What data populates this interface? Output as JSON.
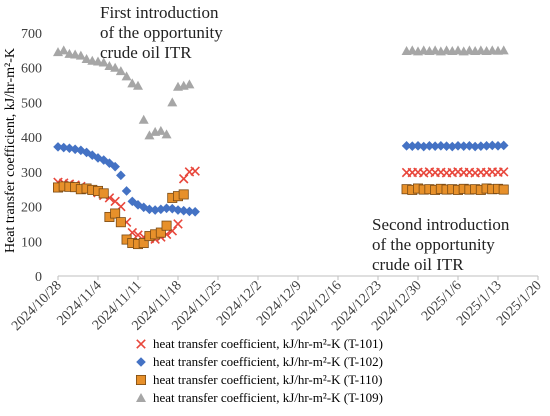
{
  "chart_data": {
    "type": "scatter",
    "ylabel": "Heat transfer coefficient, kJ/hr-m²-K",
    "ylim": [
      0,
      700
    ],
    "yticks": [
      "0",
      "100",
      "200",
      "300",
      "400",
      "500",
      "600",
      "700"
    ],
    "xticks": [
      "2024/10/28",
      "2024/11/4",
      "2024/11/11",
      "2024/11/18",
      "2024/11/25",
      "2024/12/2",
      "2024/12/9",
      "2024/12/16",
      "2024/12/23",
      "2024/12/30",
      "2025/1/6",
      "2025/1/13",
      "2025/1/20"
    ],
    "x_dates": [
      "2024-10-28",
      "2024-11-04",
      "2024-11-11",
      "2024-11-18",
      "2024-11-25",
      "2024-12-02",
      "2024-12-09",
      "2024-12-16",
      "2024-12-23",
      "2024-12-30",
      "2025-01-06",
      "2025-01-13",
      "2025-01-20"
    ],
    "grid": false,
    "legend_position": "bottom",
    "annotations": [
      {
        "lines": [
          "First introduction",
          "of the opportunity",
          "crude oil ITR"
        ]
      },
      {
        "lines": [
          "Second introduction",
          "of the opportunity",
          "crude oil ITR"
        ]
      }
    ],
    "series": [
      {
        "name": "heat transfer coefficient, kJ/hr-m²-K (T-101)",
        "marker": "x",
        "color": "#e8473c",
        "points": [
          [
            "2024-10-28",
            270
          ],
          [
            "2024-10-29",
            268
          ],
          [
            "2024-10-30",
            265
          ],
          [
            "2024-10-31",
            262
          ],
          [
            "2024-11-01",
            258
          ],
          [
            "2024-11-02",
            252
          ],
          [
            "2024-11-03",
            248
          ],
          [
            "2024-11-04",
            240
          ],
          [
            "2024-11-05",
            232
          ],
          [
            "2024-11-06",
            225
          ],
          [
            "2024-11-07",
            215
          ],
          [
            "2024-11-08",
            200
          ],
          [
            "2024-11-09",
            155
          ],
          [
            "2024-11-10",
            125
          ],
          [
            "2024-11-11",
            118
          ],
          [
            "2024-11-12",
            112
          ],
          [
            "2024-11-13",
            108
          ],
          [
            "2024-11-14",
            106
          ],
          [
            "2024-11-15",
            112
          ],
          [
            "2024-11-16",
            120
          ],
          [
            "2024-11-17",
            130
          ],
          [
            "2024-11-18",
            150
          ],
          [
            "2024-11-19",
            280
          ],
          [
            "2024-11-20",
            300
          ],
          [
            "2024-11-21",
            302
          ],
          [
            "2024-12-28",
            298
          ],
          [
            "2024-12-29",
            298
          ],
          [
            "2024-12-30",
            299
          ],
          [
            "2024-12-31",
            297
          ],
          [
            "2025-01-01",
            300
          ],
          [
            "2025-01-02",
            298
          ],
          [
            "2025-01-03",
            299
          ],
          [
            "2025-01-04",
            297
          ],
          [
            "2025-01-05",
            298
          ],
          [
            "2025-01-06",
            300
          ],
          [
            "2025-01-07",
            298
          ],
          [
            "2025-01-08",
            299
          ],
          [
            "2025-01-09",
            297
          ],
          [
            "2025-01-10",
            299
          ],
          [
            "2025-01-11",
            298
          ],
          [
            "2025-01-12",
            300
          ],
          [
            "2025-01-13",
            299
          ],
          [
            "2025-01-14",
            300
          ]
        ]
      },
      {
        "name": "heat transfer coefficient, kJ/hr-m²-K (T-102)",
        "marker": "diamond",
        "color": "#4472c4",
        "points": [
          [
            "2024-10-28",
            372
          ],
          [
            "2024-10-29",
            370
          ],
          [
            "2024-10-30",
            368
          ],
          [
            "2024-10-31",
            365
          ],
          [
            "2024-11-01",
            362
          ],
          [
            "2024-11-02",
            356
          ],
          [
            "2024-11-03",
            348
          ],
          [
            "2024-11-04",
            340
          ],
          [
            "2024-11-05",
            334
          ],
          [
            "2024-11-06",
            325
          ],
          [
            "2024-11-07",
            315
          ],
          [
            "2024-11-08",
            290
          ],
          [
            "2024-11-09",
            245
          ],
          [
            "2024-11-10",
            215
          ],
          [
            "2024-11-11",
            205
          ],
          [
            "2024-11-12",
            198
          ],
          [
            "2024-11-13",
            192
          ],
          [
            "2024-11-14",
            190
          ],
          [
            "2024-11-15",
            192
          ],
          [
            "2024-11-16",
            195
          ],
          [
            "2024-11-17",
            194
          ],
          [
            "2024-11-18",
            190
          ],
          [
            "2024-11-19",
            188
          ],
          [
            "2024-11-20",
            186
          ],
          [
            "2024-11-21",
            185
          ],
          [
            "2024-12-28",
            375
          ],
          [
            "2024-12-29",
            374
          ],
          [
            "2024-12-30",
            375
          ],
          [
            "2024-12-31",
            373
          ],
          [
            "2025-01-01",
            375
          ],
          [
            "2025-01-02",
            374
          ],
          [
            "2025-01-03",
            375
          ],
          [
            "2025-01-04",
            374
          ],
          [
            "2025-01-05",
            373
          ],
          [
            "2025-01-06",
            375
          ],
          [
            "2025-01-07",
            374
          ],
          [
            "2025-01-08",
            375
          ],
          [
            "2025-01-09",
            373
          ],
          [
            "2025-01-10",
            374
          ],
          [
            "2025-01-11",
            375
          ],
          [
            "2025-01-12",
            376
          ],
          [
            "2025-01-13",
            375
          ],
          [
            "2025-01-14",
            376
          ]
        ]
      },
      {
        "name": "heat transfer coefficient, kJ/hr-m²-K (T-110)",
        "marker": "square",
        "color": "#e7902a",
        "points": [
          [
            "2024-10-28",
            255
          ],
          [
            "2024-10-29",
            258
          ],
          [
            "2024-10-30",
            257
          ],
          [
            "2024-10-31",
            256
          ],
          [
            "2024-11-01",
            250
          ],
          [
            "2024-11-02",
            252
          ],
          [
            "2024-11-03",
            248
          ],
          [
            "2024-11-04",
            245
          ],
          [
            "2024-11-05",
            238
          ],
          [
            "2024-11-06",
            170
          ],
          [
            "2024-11-07",
            180
          ],
          [
            "2024-11-08",
            155
          ],
          [
            "2024-11-09",
            105
          ],
          [
            "2024-11-10",
            95
          ],
          [
            "2024-11-11",
            92
          ],
          [
            "2024-11-12",
            95
          ],
          [
            "2024-11-13",
            115
          ],
          [
            "2024-11-14",
            120
          ],
          [
            "2024-11-15",
            125
          ],
          [
            "2024-11-16",
            145
          ],
          [
            "2024-11-17",
            225
          ],
          [
            "2024-11-18",
            230
          ],
          [
            "2024-11-19",
            235
          ],
          [
            "2024-12-28",
            250
          ],
          [
            "2024-12-29",
            248
          ],
          [
            "2024-12-30",
            252
          ],
          [
            "2024-12-31",
            249
          ],
          [
            "2025-01-01",
            250
          ],
          [
            "2025-01-02",
            248
          ],
          [
            "2025-01-03",
            251
          ],
          [
            "2025-01-04",
            249
          ],
          [
            "2025-01-05",
            250
          ],
          [
            "2025-01-06",
            248
          ],
          [
            "2025-01-07",
            251
          ],
          [
            "2025-01-08",
            249
          ],
          [
            "2025-01-09",
            250
          ],
          [
            "2025-01-10",
            248
          ],
          [
            "2025-01-11",
            252
          ],
          [
            "2025-01-12",
            250
          ],
          [
            "2025-01-13",
            251
          ],
          [
            "2025-01-14",
            249
          ]
        ]
      },
      {
        "name": "heat transfer coefficient, kJ/hr-m²-K (T-109)",
        "marker": "triangle",
        "color": "#a6a6a6",
        "points": [
          [
            "2024-10-28",
            645
          ],
          [
            "2024-10-29",
            650
          ],
          [
            "2024-10-30",
            640
          ],
          [
            "2024-10-31",
            638
          ],
          [
            "2024-11-01",
            635
          ],
          [
            "2024-11-02",
            625
          ],
          [
            "2024-11-03",
            620
          ],
          [
            "2024-11-04",
            618
          ],
          [
            "2024-11-05",
            615
          ],
          [
            "2024-11-06",
            605
          ],
          [
            "2024-11-07",
            600
          ],
          [
            "2024-11-08",
            590
          ],
          [
            "2024-11-09",
            575
          ],
          [
            "2024-11-10",
            555
          ],
          [
            "2024-11-11",
            548
          ],
          [
            "2024-11-12",
            450
          ],
          [
            "2024-11-13",
            405
          ],
          [
            "2024-11-14",
            415
          ],
          [
            "2024-11-15",
            418
          ],
          [
            "2024-11-16",
            408
          ],
          [
            "2024-11-17",
            500
          ],
          [
            "2024-11-18",
            545
          ],
          [
            "2024-11-19",
            548
          ],
          [
            "2024-11-20",
            552
          ],
          [
            "2024-12-28",
            648
          ],
          [
            "2024-12-29",
            650
          ],
          [
            "2024-12-30",
            647
          ],
          [
            "2024-12-31",
            650
          ],
          [
            "2025-01-01",
            648
          ],
          [
            "2025-01-02",
            650
          ],
          [
            "2025-01-03",
            647
          ],
          [
            "2025-01-04",
            650
          ],
          [
            "2025-01-05",
            648
          ],
          [
            "2025-01-06",
            650
          ],
          [
            "2025-01-07",
            647
          ],
          [
            "2025-01-08",
            650
          ],
          [
            "2025-01-09",
            648
          ],
          [
            "2025-01-10",
            650
          ],
          [
            "2025-01-11",
            648
          ],
          [
            "2025-01-12",
            650
          ],
          [
            "2025-01-13",
            649
          ],
          [
            "2025-01-14",
            650
          ]
        ]
      }
    ]
  }
}
